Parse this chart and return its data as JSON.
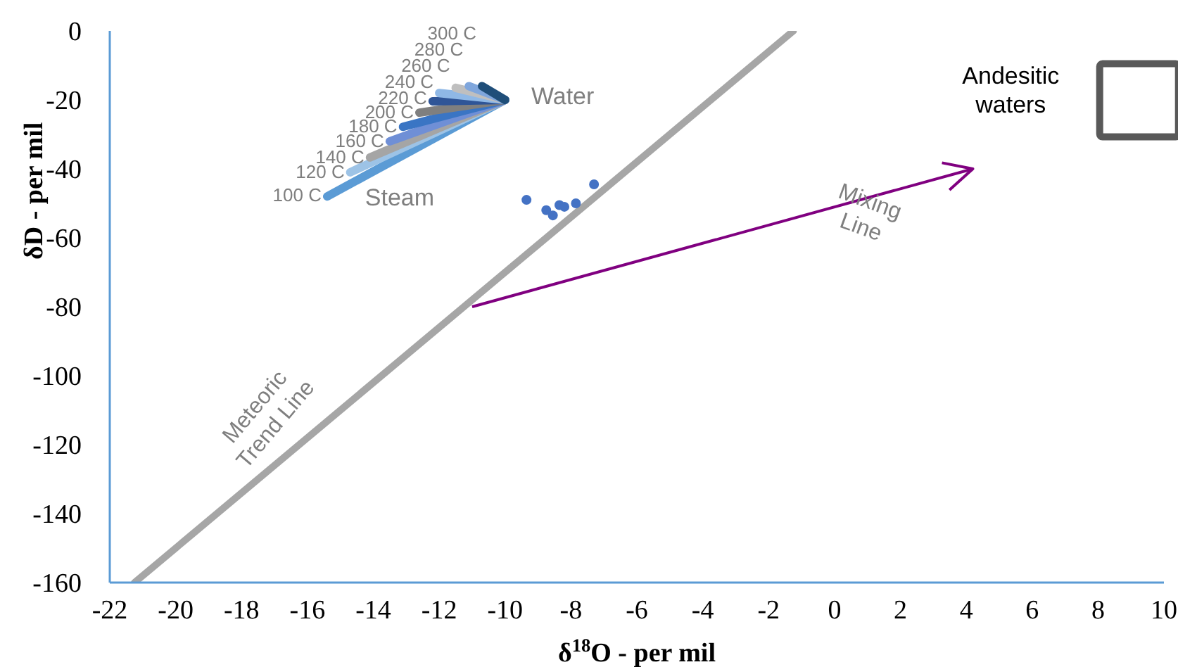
{
  "chart_data": {
    "type": "line",
    "xlabel": "δ$^{18}$O - per mil",
    "ylabel": "δD - per mil",
    "xlim": [
      -22,
      10
    ],
    "xticks": [
      -22,
      -20,
      -18,
      -16,
      -14,
      -12,
      -10,
      -8,
      -6,
      -4,
      -2,
      0,
      2,
      4,
      6,
      8,
      10
    ],
    "ylim": [
      -160,
      0
    ],
    "yticks": [
      -160,
      -140,
      -120,
      -100,
      -80,
      -60,
      -40,
      -20,
      0
    ],
    "grid": false,
    "series": [
      {
        "color": "#a6a6a6",
        "x": [
          -21.25,
          -1.25
        ],
        "values": [
          -160,
          0
        ]
      },
      {
        "color": "#5b9bd5",
        "x": [
          -15.4,
          -10
        ],
        "values": [
          -48,
          -20
        ]
      },
      {
        "color": "#9dc3e6",
        "x": [
          -14.7,
          -10
        ],
        "values": [
          -41,
          -20
        ]
      },
      {
        "color": "#a5a5a5",
        "x": [
          -14.1,
          -10
        ],
        "values": [
          -36.7,
          -20
        ]
      },
      {
        "color": "#6f8fd6",
        "x": [
          -13.5,
          -10
        ],
        "values": [
          -32,
          -20
        ]
      },
      {
        "color": "#3a75c4",
        "x": [
          -13.1,
          -10
        ],
        "values": [
          -27.8,
          -20
        ]
      },
      {
        "color": "#7f7f7f",
        "x": [
          -12.6,
          -10
        ],
        "values": [
          -23.7,
          -20
        ]
      },
      {
        "color": "#2f5597",
        "x": [
          -12.2,
          -10
        ],
        "values": [
          -20.4,
          -20
        ]
      },
      {
        "color": "#8fb8e6",
        "x": [
          -12,
          -10
        ],
        "values": [
          -18,
          -20
        ]
      },
      {
        "color": "#bfbfbf",
        "x": [
          -11.5,
          -10
        ],
        "values": [
          -16.5,
          -20
        ]
      },
      {
        "color": "#7fa6dc",
        "x": [
          -11.1,
          -10
        ],
        "values": [
          -16,
          -20
        ]
      },
      {
        "color": "#1f4e79",
        "x": [
          -10.7,
          -10
        ],
        "values": [
          -16,
          -20
        ]
      },
      {
        "type": "scatter",
        "marker": "circle",
        "color": "#4472c4",
        "x": [
          -9.35,
          -8.75,
          -8.55,
          -8.35,
          -8.2,
          -7.85,
          -7.3
        ],
        "values": [
          -49,
          -52,
          -53.5,
          -50.5,
          -51,
          -50,
          -44.5
        ]
      },
      {
        "color": "#800080",
        "x": [
          -11,
          4.2
        ],
        "values": [
          -80,
          -40
        ]
      }
    ],
    "annotations": [
      "100 C",
      "120 C",
      "140 C",
      "160 C",
      "180 C",
      "200 C",
      "220 C",
      "240 C",
      "260 C",
      "280 C",
      "300 C",
      "Steam",
      "Water",
      "Andesitic waters",
      "Meteoric Trend Line",
      "Mixing Line"
    ]
  }
}
